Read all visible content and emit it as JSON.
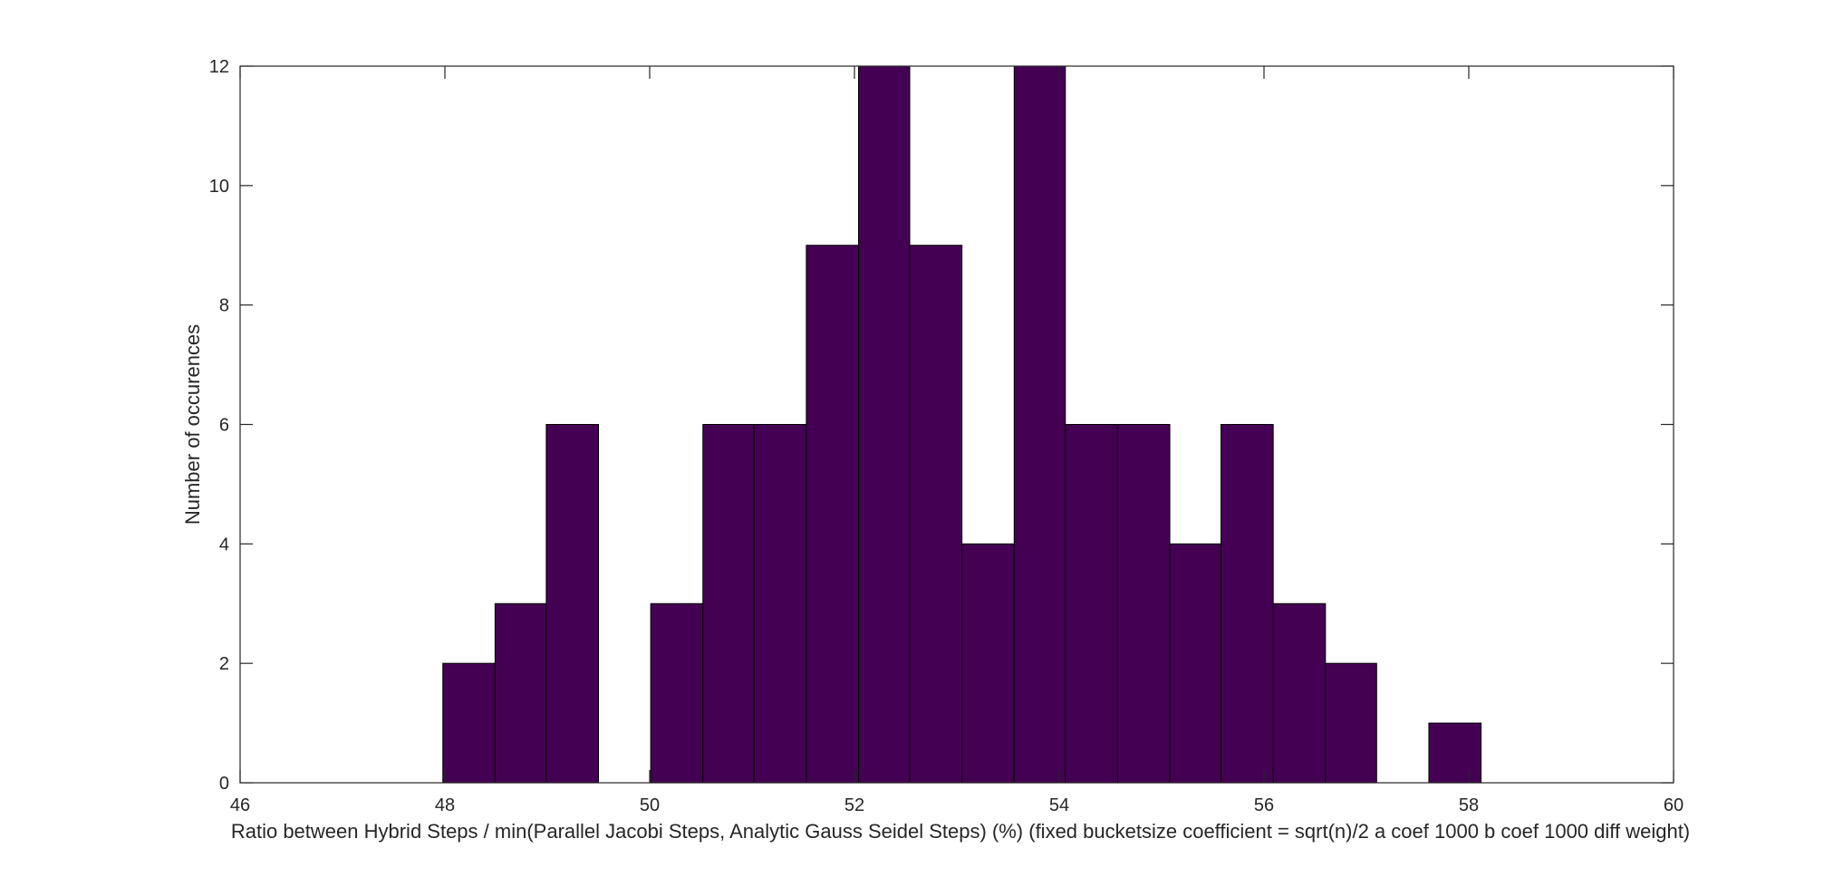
{
  "chart_data": {
    "type": "bar",
    "subtype": "histogram",
    "title": "",
    "xlabel": "Ratio between Hybrid Steps / min(Parallel Jacobi Steps, Analytic Gauss Seidel Steps) (%) (fixed bucketsize coefficient = sqrt(n)/2 a coef 1000 b coef 1000 diff weight)",
    "ylabel": "Number of occurences",
    "xlim": [
      46,
      60
    ],
    "ylim": [
      0,
      12
    ],
    "xticks": [
      "46",
      "48",
      "50",
      "52",
      "54",
      "56",
      "58",
      "60"
    ],
    "yticks": [
      "0",
      "2",
      "4",
      "6",
      "8",
      "10",
      "12"
    ],
    "grid": false,
    "bar_color": "#440154",
    "bins": [
      {
        "x0": 47.98,
        "x1": 48.49,
        "count": 2
      },
      {
        "x0": 48.49,
        "x1": 48.99,
        "count": 3
      },
      {
        "x0": 48.99,
        "x1": 49.5,
        "count": 6
      },
      {
        "x0": 50.01,
        "x1": 50.52,
        "count": 3
      },
      {
        "x0": 50.52,
        "x1": 51.02,
        "count": 6
      },
      {
        "x0": 51.02,
        "x1": 51.53,
        "count": 6
      },
      {
        "x0": 51.53,
        "x1": 52.04,
        "count": 9
      },
      {
        "x0": 52.04,
        "x1": 52.54,
        "count": 12
      },
      {
        "x0": 52.54,
        "x1": 53.05,
        "count": 9
      },
      {
        "x0": 53.05,
        "x1": 53.56,
        "count": 4
      },
      {
        "x0": 53.56,
        "x1": 54.06,
        "count": 12
      },
      {
        "x0": 54.06,
        "x1": 54.57,
        "count": 6
      },
      {
        "x0": 54.57,
        "x1": 55.08,
        "count": 6
      },
      {
        "x0": 55.08,
        "x1": 55.58,
        "count": 4
      },
      {
        "x0": 55.58,
        "x1": 56.09,
        "count": 6
      },
      {
        "x0": 56.09,
        "x1": 56.6,
        "count": 3
      },
      {
        "x0": 56.6,
        "x1": 57.1,
        "count": 2
      },
      {
        "x0": 57.61,
        "x1": 58.12,
        "count": 1
      }
    ]
  }
}
